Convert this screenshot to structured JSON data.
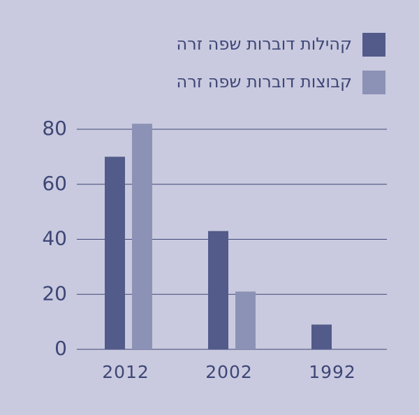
{
  "chart_data": {
    "type": "bar",
    "categories": [
      "2012",
      "2002",
      "1992"
    ],
    "series": [
      {
        "name": "קהילות דוברות שפה זרה",
        "color": "#525b8a",
        "values": [
          70,
          43,
          9
        ]
      },
      {
        "name": "קבוצות דוברות שפה זרה",
        "color": "#8c92b5",
        "values": [
          82,
          21,
          null
        ]
      }
    ],
    "ylim": [
      0,
      85
    ],
    "yticks": [
      0,
      20,
      40,
      60,
      80
    ],
    "grid": true,
    "legend": "top-right"
  }
}
